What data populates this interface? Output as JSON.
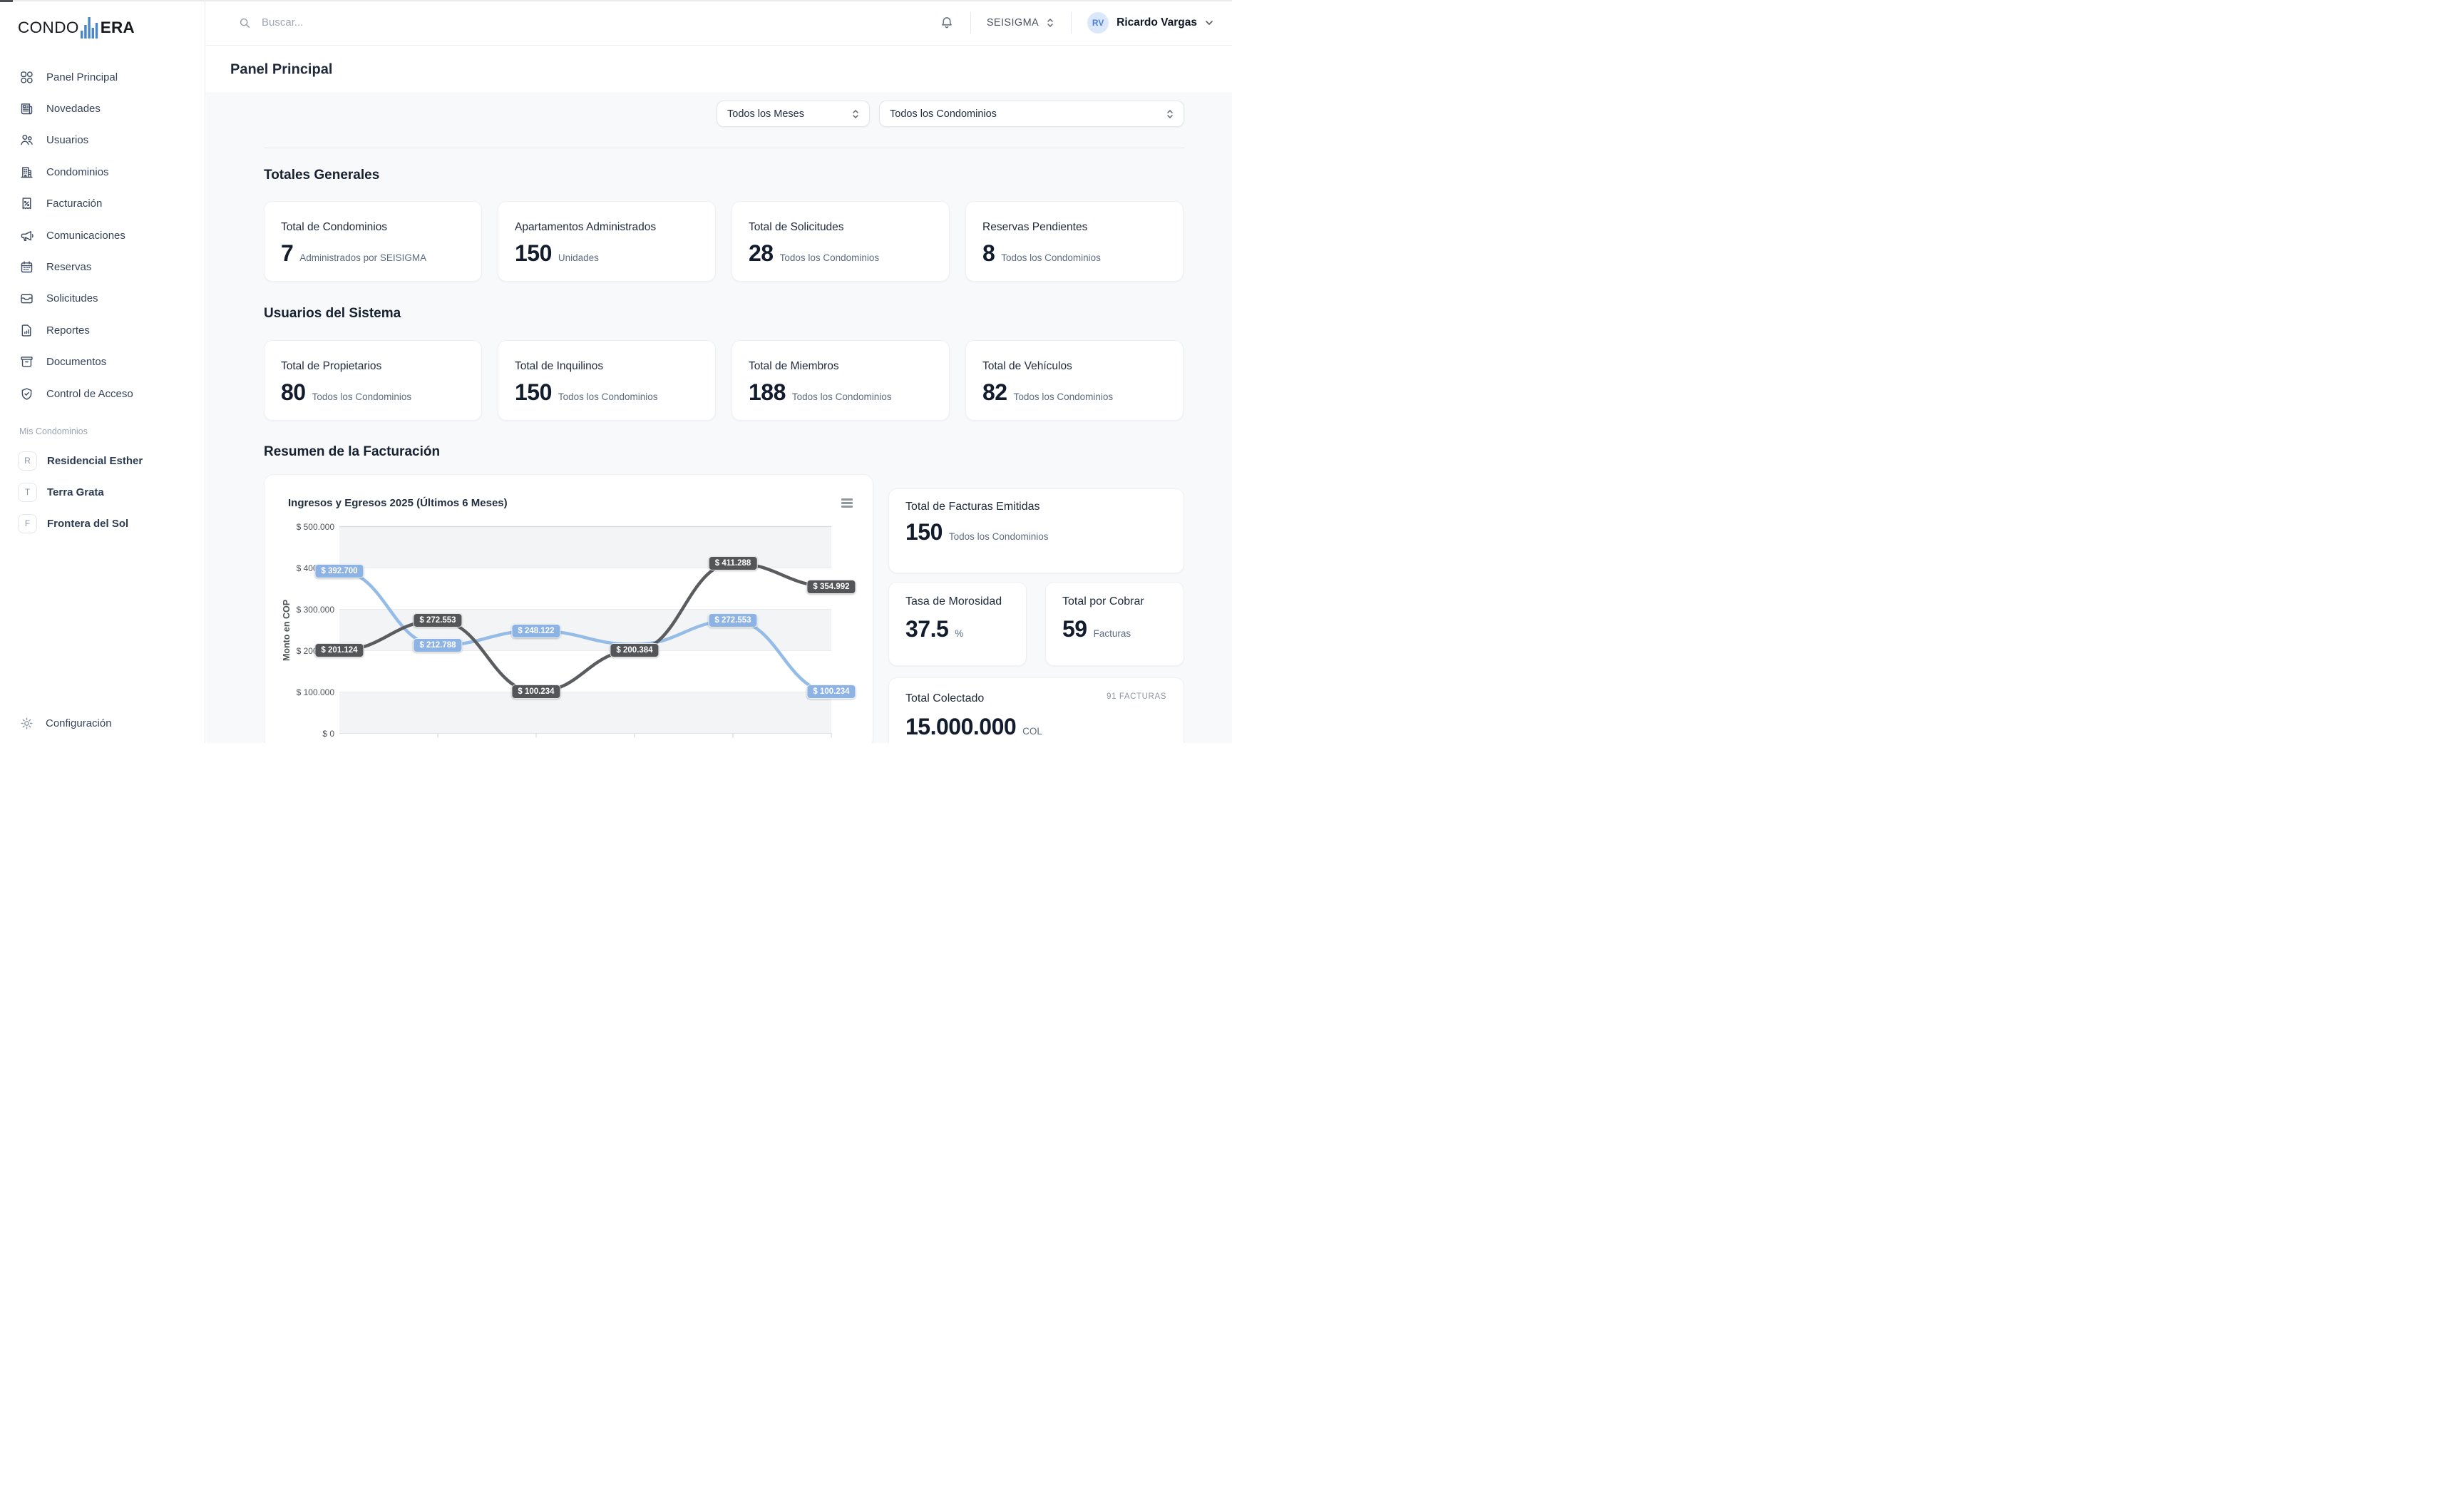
{
  "app": {
    "logo_prefix": "CONDO",
    "logo_suffix": "ERA",
    "logo_color": "#4a87c7"
  },
  "topbar": {
    "search_placeholder": "Buscar...",
    "company": "SEISIGMA",
    "user_initials": "RV",
    "user_name": "Ricardo Vargas",
    "avatar_bg": "#dbe8fc",
    "avatar_color": "#4d7fd6"
  },
  "page": {
    "title": "Panel Principal"
  },
  "filters": {
    "months": "Todos los Meses",
    "condos": "Todos los Condominios"
  },
  "sidebar": {
    "items": [
      {
        "label": "Panel Principal",
        "icon": "grid"
      },
      {
        "label": "Novedades",
        "icon": "newspaper"
      },
      {
        "label": "Usuarios",
        "icon": "users"
      },
      {
        "label": "Condominios",
        "icon": "building"
      },
      {
        "label": "Facturación",
        "icon": "receipt"
      },
      {
        "label": "Comunicaciones",
        "icon": "megaphone"
      },
      {
        "label": "Reservas",
        "icon": "calendar"
      },
      {
        "label": "Solicitudes",
        "icon": "inbox"
      },
      {
        "label": "Reportes",
        "icon": "report"
      },
      {
        "label": "Documentos",
        "icon": "archive"
      },
      {
        "label": "Control de Acceso",
        "icon": "shield"
      }
    ],
    "section_label": "Mis Condominios",
    "condos": [
      {
        "initial": "R",
        "name": "Residencial Esther"
      },
      {
        "initial": "T",
        "name": "Terra Grata"
      },
      {
        "initial": "F",
        "name": "Frontera del Sol"
      }
    ],
    "settings_label": "Configuración"
  },
  "sections": {
    "totales": {
      "heading": "Totales Generales",
      "cards": [
        {
          "title": "Total de Condominios",
          "value": "7",
          "subtitle": "Administrados por SEISIGMA"
        },
        {
          "title": "Apartamentos Administrados",
          "value": "150",
          "subtitle": "Unidades"
        },
        {
          "title": "Total de Solicitudes",
          "value": "28",
          "subtitle": "Todos los Condominios"
        },
        {
          "title": "Reservas Pendientes",
          "value": "8",
          "subtitle": "Todos los Condominios"
        }
      ]
    },
    "usuarios": {
      "heading": "Usuarios del Sistema",
      "cards": [
        {
          "title": "Total de Propietarios",
          "value": "80",
          "subtitle": "Todos los Condominios"
        },
        {
          "title": "Total de Inquilinos",
          "value": "150",
          "subtitle": "Todos los Condominios"
        },
        {
          "title": "Total de Miembros",
          "value": "188",
          "subtitle": "Todos los Condominios"
        },
        {
          "title": "Total de Vehículos",
          "value": "82",
          "subtitle": "Todos los Condominios"
        }
      ]
    },
    "resumen": {
      "heading": "Resumen de la Facturación"
    }
  },
  "right_cards": {
    "facturas": {
      "title": "Total de Facturas Emitidas",
      "value": "150",
      "unit": "Todos los Condominios"
    },
    "morosidad": {
      "title": "Tasa de Morosidad",
      "value": "37.5",
      "unit": "%"
    },
    "por_cobrar": {
      "title": "Total por Cobrar",
      "value": "59",
      "unit": "Facturas"
    },
    "colectado": {
      "title": "Total Colectado",
      "badge": "91 FACTURAS",
      "value": "15.000.000",
      "unit": "COL"
    }
  },
  "chart_data": {
    "type": "line",
    "title": "Ingresos y Egresos 2025 (Últimos 6 Meses)",
    "ylabel": "Monto en COP",
    "ylim": [
      0,
      500000
    ],
    "yticks": [
      "$ 0",
      "$ 100.000",
      "$ 200.000",
      "$ 300.000",
      "$ 400.000",
      "$ 500.000"
    ],
    "x_axis_labels_visible": false,
    "grid": true,
    "legend_visible": false,
    "alternating_band_color": "#f3f4f6",
    "series": [
      {
        "name": "Ingresos",
        "color": "#94bce7",
        "label_bg": "#8cb3e4",
        "values": [
          392700,
          212788,
          248122,
          215000,
          272553,
          100234
        ],
        "labels": [
          "$ 392.700",
          "$ 212.788",
          "$ 248.122",
          null,
          "$ 272.553",
          "$ 100.234"
        ],
        "note": "4th point label hidden behind gray series label; value estimated from curve"
      },
      {
        "name": "Egresos",
        "color": "#5b5c60",
        "label_bg": "#545559",
        "values": [
          201124,
          272553,
          100234,
          200384,
          411288,
          354992
        ],
        "labels": [
          "$ 201.124",
          "$ 272.553",
          "$ 100.234",
          "$ 200.384",
          "$ 411.288",
          "$ 354.992"
        ]
      }
    ]
  }
}
